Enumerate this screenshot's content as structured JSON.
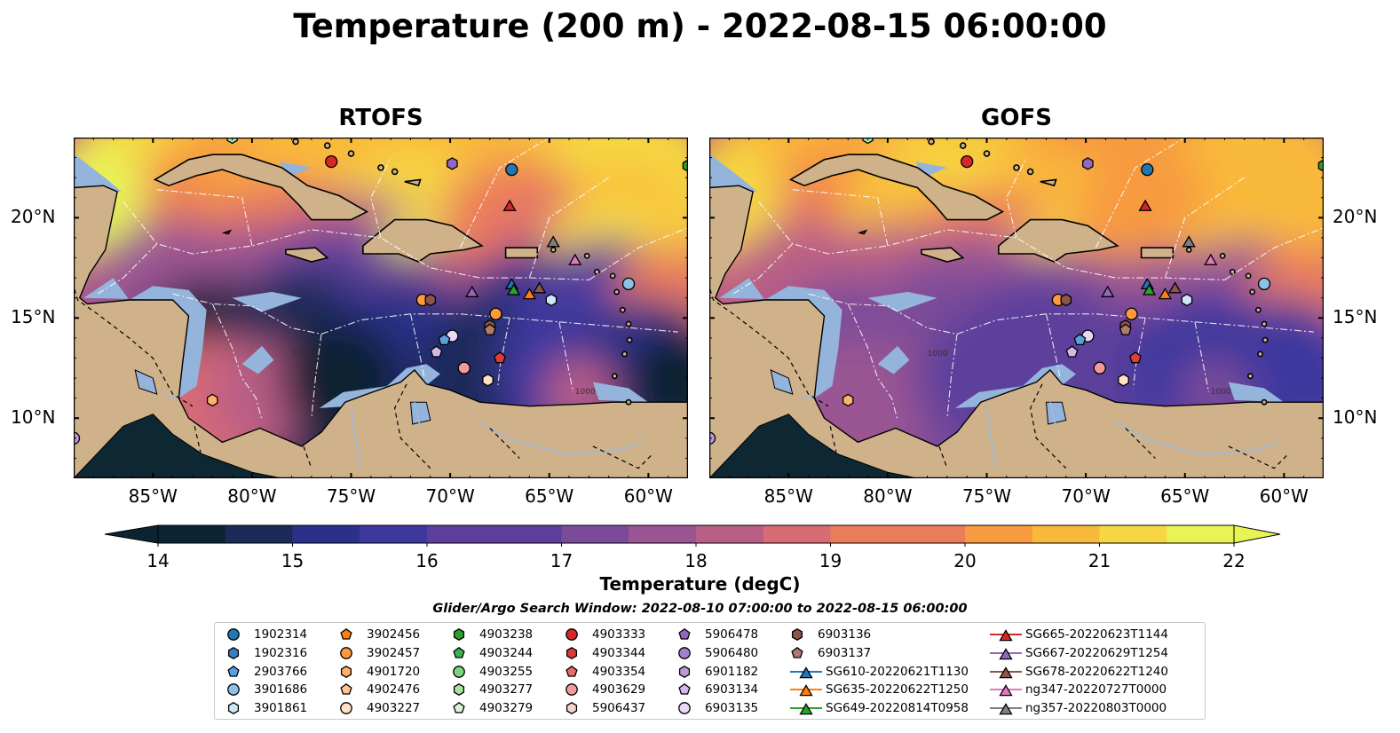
{
  "title": "Temperature (200 m) - 2022-08-15 06:00:00",
  "panels": [
    {
      "title": "RTOFS",
      "variant": "rtofs"
    },
    {
      "title": "GOFS",
      "variant": "gofs"
    }
  ],
  "axes": {
    "lon_ticks": [
      "85°W",
      "80°W",
      "75°W",
      "70°W",
      "65°W",
      "60°W"
    ],
    "lat_ticks": [
      "20°N",
      "15°N",
      "10°N"
    ],
    "extent": {
      "lon": [
        -89,
        -58
      ],
      "lat": [
        7,
        24
      ]
    }
  },
  "colorbar": {
    "label": "Temperature (degC)",
    "ticks": [
      "14",
      "15",
      "16",
      "17",
      "18",
      "19",
      "20",
      "21",
      "22"
    ],
    "range": [
      14,
      22
    ],
    "colors": [
      "#0c2432",
      "#1b2a57",
      "#2b318a",
      "#3e389e",
      "#5c3f9c",
      "#7b4b99",
      "#9a5593",
      "#b95f86",
      "#d86b74",
      "#ec7d5a",
      "#f79a40",
      "#f9b93a",
      "#f6d742",
      "#e8f456"
    ]
  },
  "colors": {
    "land": "#d0b28a",
    "shelf": "#94b4dc",
    "coast": "#000000"
  },
  "search_window": "Glider/Argo Search Window: 2022-08-10 07:00:00 to 2022-08-15 06:00:00",
  "legend": [
    {
      "label": "1902314",
      "marker": "circle",
      "color": "#1f77b4"
    },
    {
      "label": "1902316",
      "marker": "hexagon",
      "color": "#3a7fc2"
    },
    {
      "label": "2903766",
      "marker": "pentagon",
      "color": "#5aa0de"
    },
    {
      "label": "3901686",
      "marker": "circle",
      "color": "#8cc0e6"
    },
    {
      "label": "3901861",
      "marker": "hexagon",
      "color": "#cfe6f7"
    },
    {
      "label": "3902456",
      "marker": "pentagon",
      "color": "#ff7f0e"
    },
    {
      "label": "3902457",
      "marker": "circle",
      "color": "#ff9a3c"
    },
    {
      "label": "4901720",
      "marker": "hexagon",
      "color": "#ffb06a"
    },
    {
      "label": "4902476",
      "marker": "pentagon",
      "color": "#ffc690"
    },
    {
      "label": "4903227",
      "marker": "circle",
      "color": "#ffe2c4"
    },
    {
      "label": "4903238",
      "marker": "hexagon",
      "color": "#2ca02c"
    },
    {
      "label": "4903244",
      "marker": "pentagon",
      "color": "#3cb44b"
    },
    {
      "label": "4903255",
      "marker": "circle",
      "color": "#7fd27a"
    },
    {
      "label": "4903277",
      "marker": "hexagon",
      "color": "#a6e3a0"
    },
    {
      "label": "4903279",
      "marker": "pentagon",
      "color": "#d9f5d5"
    },
    {
      "label": "4903333",
      "marker": "circle",
      "color": "#d62728"
    },
    {
      "label": "4903344",
      "marker": "hexagon",
      "color": "#de3b3b"
    },
    {
      "label": "4903354",
      "marker": "pentagon",
      "color": "#ea6b6b"
    },
    {
      "label": "4903629",
      "marker": "circle",
      "color": "#f29a9a"
    },
    {
      "label": "5906437",
      "marker": "hexagon",
      "color": "#fbd2d2"
    },
    {
      "label": "5906478",
      "marker": "pentagon",
      "color": "#9467bd"
    },
    {
      "label": "5906480",
      "marker": "circle",
      "color": "#a57fcb"
    },
    {
      "label": "6901182",
      "marker": "hexagon",
      "color": "#bb9ad9"
    },
    {
      "label": "6903134",
      "marker": "pentagon",
      "color": "#d3b9ea"
    },
    {
      "label": "6903135",
      "marker": "circle",
      "color": "#e7d8f6"
    },
    {
      "label": "6903136",
      "marker": "hexagon",
      "color": "#8c564b"
    },
    {
      "label": "6903137",
      "marker": "pentagon",
      "color": "#b07a6e"
    },
    {
      "label": "SG610-20220621T1130",
      "marker": "triangle-line",
      "color": "#1f77b4"
    },
    {
      "label": "SG635-20220622T1250",
      "marker": "triangle-line",
      "color": "#ff7f0e"
    },
    {
      "label": "SG649-20220814T0958",
      "marker": "triangle-line",
      "color": "#2ca02c"
    },
    {
      "label": "SG665-20220623T1144",
      "marker": "triangle-line",
      "color": "#d62728"
    },
    {
      "label": "SG667-20220629T1254",
      "marker": "triangle-line",
      "color": "#9467bd"
    },
    {
      "label": "SG678-20220622T1240",
      "marker": "triangle-line",
      "color": "#8c564b"
    },
    {
      "label": "ng347-20220727T0000",
      "marker": "triangle-line",
      "color": "#e377c2"
    },
    {
      "label": "ng357-20220803T0000",
      "marker": "triangle-line",
      "color": "#7f7f7f"
    }
  ],
  "observations": [
    {
      "shape": "circle",
      "color": "#d62728",
      "lon": -76.0,
      "lat": 22.8
    },
    {
      "shape": "circle",
      "color": "#1f77b4",
      "lon": -66.9,
      "lat": 22.4
    },
    {
      "shape": "hexagon",
      "color": "#9467bd",
      "lon": -69.9,
      "lat": 22.7
    },
    {
      "shape": "triangle",
      "color": "#d62728",
      "lon": -67.0,
      "lat": 20.7
    },
    {
      "shape": "triangle",
      "color": "#7f7f7f",
      "lon": -64.8,
      "lat": 18.9
    },
    {
      "shape": "triangle",
      "color": "#e377c2",
      "lon": -63.7,
      "lat": 18.0
    },
    {
      "shape": "triangle",
      "color": "#9467bd",
      "lon": -68.9,
      "lat": 16.4
    },
    {
      "shape": "triangle",
      "color": "#1f77b4",
      "lon": -66.9,
      "lat": 16.8
    },
    {
      "shape": "triangle",
      "color": "#2ca02c",
      "lon": -66.8,
      "lat": 16.5
    },
    {
      "shape": "triangle",
      "color": "#8c564b",
      "lon": -65.5,
      "lat": 16.6
    },
    {
      "shape": "triangle",
      "color": "#ff7f0e",
      "lon": -66.0,
      "lat": 16.3
    },
    {
      "shape": "hexagon",
      "color": "#cfe6f7",
      "lon": -64.9,
      "lat": 15.9
    },
    {
      "shape": "circle",
      "color": "#8cc0e6",
      "lon": -61.0,
      "lat": 16.7
    },
    {
      "shape": "circle",
      "color": "#ff9a3c",
      "lon": -71.4,
      "lat": 15.9
    },
    {
      "shape": "hexagon",
      "color": "#8c564b",
      "lon": -71.0,
      "lat": 15.9
    },
    {
      "shape": "circle",
      "color": "#ff9a3c",
      "lon": -67.7,
      "lat": 15.2
    },
    {
      "shape": "hexagon",
      "color": "#8c564b",
      "lon": -68.0,
      "lat": 14.6
    },
    {
      "shape": "pentagon",
      "color": "#b07a6e",
      "lon": -68.0,
      "lat": 14.4
    },
    {
      "shape": "circle",
      "color": "#e7d8f6",
      "lon": -69.9,
      "lat": 14.1
    },
    {
      "shape": "pentagon",
      "color": "#5aa0de",
      "lon": -70.3,
      "lat": 13.9
    },
    {
      "shape": "pentagon",
      "color": "#d3b9ea",
      "lon": -70.7,
      "lat": 13.3
    },
    {
      "shape": "circle",
      "color": "#f29a9a",
      "lon": -69.3,
      "lat": 12.5
    },
    {
      "shape": "pentagon",
      "color": "#de3b3b",
      "lon": -67.5,
      "lat": 13.0
    },
    {
      "shape": "hexagon",
      "color": "#ffe2c4",
      "lon": -68.1,
      "lat": 11.9
    },
    {
      "shape": "hexagon",
      "color": "#ffb06a",
      "lon": -82.0,
      "lat": 10.9
    },
    {
      "shape": "circle",
      "color": "#bb9ad9",
      "lon": -89.0,
      "lat": 9.0
    },
    {
      "shape": "hexagon",
      "color": "#2ca02c",
      "lon": -58.0,
      "lat": 22.6
    },
    {
      "shape": "hexagon",
      "color": "#a6e3a0",
      "lon": -81.0,
      "lat": 24.0
    }
  ],
  "contour_label": "1000"
}
